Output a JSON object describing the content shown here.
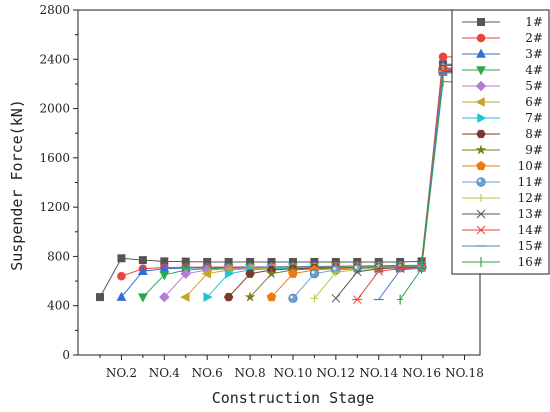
{
  "chart_data": {
    "type": "line",
    "xlabel": "Construction Stage",
    "ylabel": "Suspender Force(kN)",
    "ylim": [
      0,
      2800
    ],
    "yticks": [
      0,
      400,
      800,
      1200,
      1600,
      2000,
      2400,
      2800
    ],
    "x_stages": [
      1,
      2,
      3,
      4,
      5,
      6,
      7,
      8,
      9,
      10,
      11,
      12,
      13,
      14,
      15,
      16,
      17,
      18
    ],
    "xtick_labels": [
      {
        "stage": 2,
        "label": "NO.2"
      },
      {
        "stage": 4,
        "label": "NO.4"
      },
      {
        "stage": 6,
        "label": "NO.6"
      },
      {
        "stage": 8,
        "label": "NO.8"
      },
      {
        "stage": 10,
        "label": "NO.10"
      },
      {
        "stage": 12,
        "label": "NO.12"
      },
      {
        "stage": 14,
        "label": "NO.14"
      },
      {
        "stage": 16,
        "label": "NO.16"
      },
      {
        "stage": 18,
        "label": "NO.18"
      }
    ],
    "legend_position": "right",
    "grid": false,
    "series": [
      {
        "name": "1#",
        "color": "#555555",
        "marker": "square",
        "start": 1,
        "values": [
          470,
          785,
          770,
          760,
          758,
          755,
          755,
          755,
          755,
          755,
          755,
          755,
          755,
          755,
          755,
          760,
          2360,
          2360
        ]
      },
      {
        "name": "2#",
        "color": "#e8453c",
        "marker": "circle",
        "start": 2,
        "values": [
          640,
          700,
          710,
          712,
          713,
          714,
          714,
          715,
          716,
          717,
          718,
          720,
          722,
          724,
          726,
          2420,
          2420
        ]
      },
      {
        "name": "3#",
        "color": "#2f6fd6",
        "marker": "triangle-up",
        "start": 2,
        "values": [
          470,
          680,
          700,
          705,
          708,
          710,
          712,
          714,
          716,
          718,
          720,
          722,
          724,
          726,
          728,
          2350,
          2350
        ]
      },
      {
        "name": "4#",
        "color": "#2aa84a",
        "marker": "triangle-down",
        "start": 3,
        "values": [
          470,
          650,
          690,
          700,
          705,
          708,
          710,
          712,
          714,
          716,
          718,
          720,
          722,
          724,
          2300,
          2300
        ]
      },
      {
        "name": "5#",
        "color": "#b57bd6",
        "marker": "diamond",
        "start": 4,
        "values": [
          470,
          660,
          690,
          700,
          705,
          708,
          710,
          712,
          714,
          716,
          718,
          720,
          722,
          2330,
          2330
        ]
      },
      {
        "name": "6#",
        "color": "#c9a227",
        "marker": "triangle-left",
        "start": 5,
        "values": [
          470,
          660,
          690,
          700,
          705,
          708,
          710,
          712,
          714,
          716,
          718,
          720,
          2320,
          2320
        ]
      },
      {
        "name": "7#",
        "color": "#22c3d6",
        "marker": "triangle-right",
        "start": 6,
        "values": [
          470,
          660,
          690,
          700,
          705,
          708,
          710,
          712,
          714,
          716,
          718,
          2310,
          2310
        ]
      },
      {
        "name": "8#",
        "color": "#7a3b2e",
        "marker": "hexagon",
        "start": 7,
        "values": [
          470,
          660,
          690,
          700,
          705,
          708,
          710,
          712,
          714,
          716,
          2320,
          2320
        ]
      },
      {
        "name": "9#",
        "color": "#7c7c1a",
        "marker": "star",
        "start": 8,
        "values": [
          470,
          660,
          690,
          700,
          705,
          708,
          710,
          712,
          714,
          2300,
          2300
        ]
      },
      {
        "name": "10#",
        "color": "#f07a12",
        "marker": "pentagon",
        "start": 9,
        "values": [
          470,
          660,
          690,
          700,
          705,
          708,
          710,
          712,
          2310,
          2310
        ]
      },
      {
        "name": "11#",
        "color": "#6b9fd4",
        "marker": "sphere",
        "start": 10,
        "values": [
          460,
          660,
          690,
          700,
          705,
          708,
          710,
          2300,
          2300
        ]
      },
      {
        "name": "12#",
        "color": "#a6cf3a",
        "marker": "plus",
        "start": 11,
        "values": [
          460,
          670,
          695,
          705,
          710,
          712,
          2310,
          2310
        ]
      },
      {
        "name": "13#",
        "color": "#555555",
        "marker": "cross",
        "start": 12,
        "values": [
          460,
          675,
          700,
          708,
          712,
          2300,
          2300
        ]
      },
      {
        "name": "14#",
        "color": "#e8453c",
        "marker": "asterisk",
        "start": 13,
        "values": [
          450,
          680,
          700,
          710,
          2310,
          2310
        ]
      },
      {
        "name": "15#",
        "color": "#4a7fd0",
        "marker": "dash",
        "start": 14,
        "values": [
          450,
          690,
          705,
          2290,
          2290
        ]
      },
      {
        "name": "16#",
        "color": "#2aa84a",
        "marker": "vbar",
        "start": 15,
        "values": [
          450,
          700,
          2220,
          2210
        ]
      }
    ]
  }
}
